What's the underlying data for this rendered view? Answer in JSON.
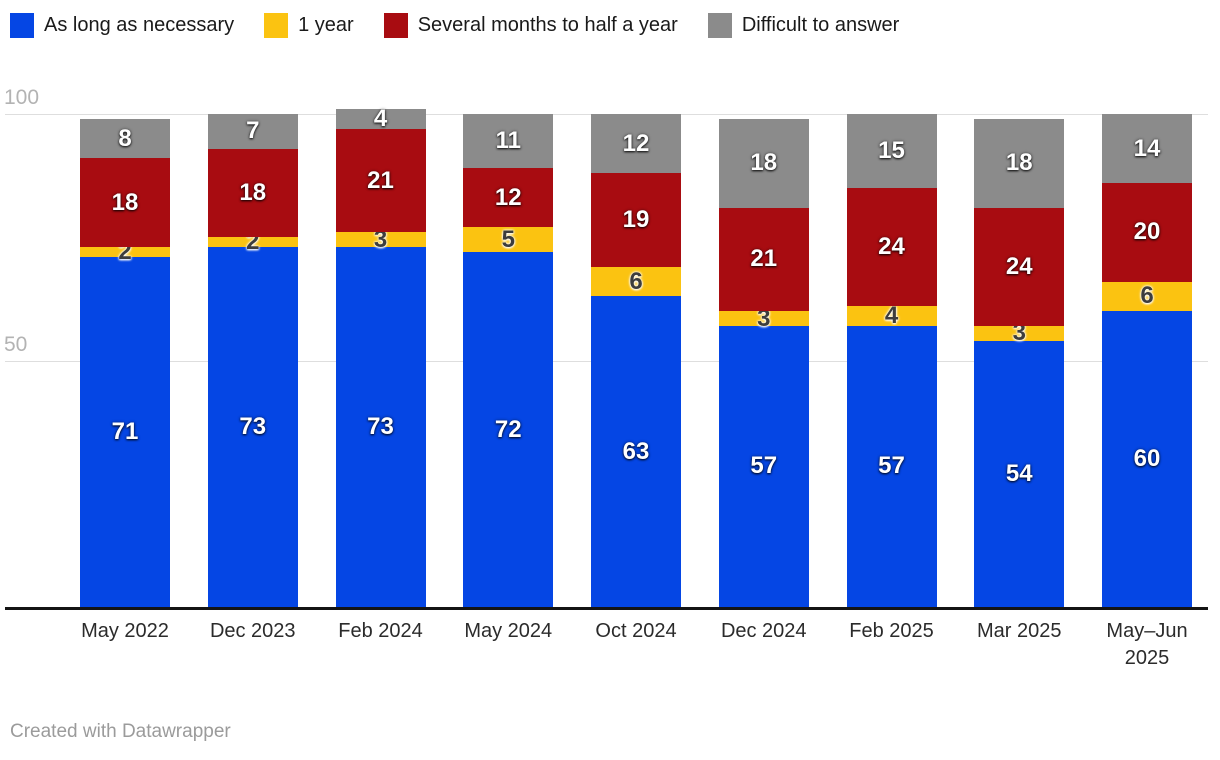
{
  "chart_data": {
    "type": "bar",
    "stacked": true,
    "title": "",
    "categories": [
      "May 2022",
      "Dec 2023",
      "Feb 2024",
      "May 2024",
      "Oct 2024",
      "Dec 2024",
      "Feb 2025",
      "Mar 2025",
      "May–Jun 2025"
    ],
    "series": [
      {
        "name": "As long as necessary",
        "color": "#0546e4",
        "label_style": "light",
        "values": [
          71,
          73,
          73,
          72,
          63,
          57,
          57,
          54,
          60
        ]
      },
      {
        "name": "1 year",
        "color": "#fbc311",
        "label_style": "dark",
        "values": [
          2,
          2,
          3,
          5,
          6,
          3,
          4,
          3,
          6
        ]
      },
      {
        "name": "Several months to half a year",
        "color": "#a80c11",
        "label_style": "light",
        "values": [
          18,
          18,
          21,
          12,
          19,
          21,
          24,
          24,
          20
        ]
      },
      {
        "name": "Difficult to answer",
        "color": "#8b8b8b",
        "label_style": "light",
        "values": [
          8,
          7,
          4,
          11,
          12,
          18,
          15,
          18,
          14
        ]
      }
    ],
    "ylim": [
      0,
      100
    ],
    "yticks": [
      100,
      50
    ],
    "grid": true,
    "legend_position": "top"
  },
  "footer": {
    "credit": "Created with Datawrapper"
  }
}
